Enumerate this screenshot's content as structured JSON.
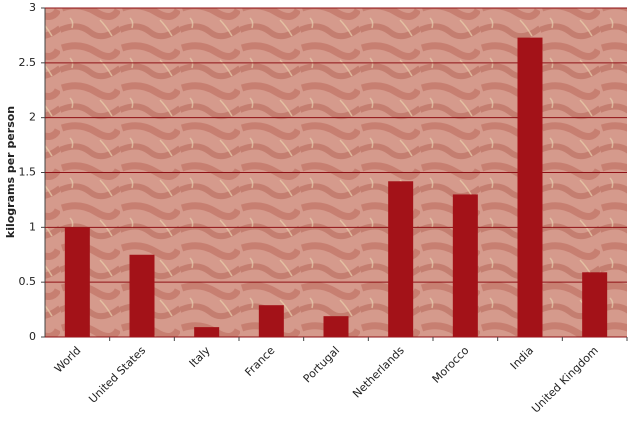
{
  "chart_data": {
    "type": "bar",
    "y_label": "kilograms per person",
    "categories": [
      "World",
      "United States",
      "Italy",
      "France",
      "Portugal",
      "Netherlands",
      "Morocco",
      "India",
      "United Kingdom"
    ],
    "values": [
      1.0,
      0.75,
      0.09,
      0.29,
      0.19,
      1.42,
      1.3,
      2.73,
      0.59
    ],
    "color": "#a31218",
    "ylim": [
      0,
      3
    ],
    "yticks": [
      0,
      0.5,
      1,
      1.5,
      2,
      2.5,
      3
    ],
    "grid": true,
    "grid_color": "#8f1015"
  }
}
